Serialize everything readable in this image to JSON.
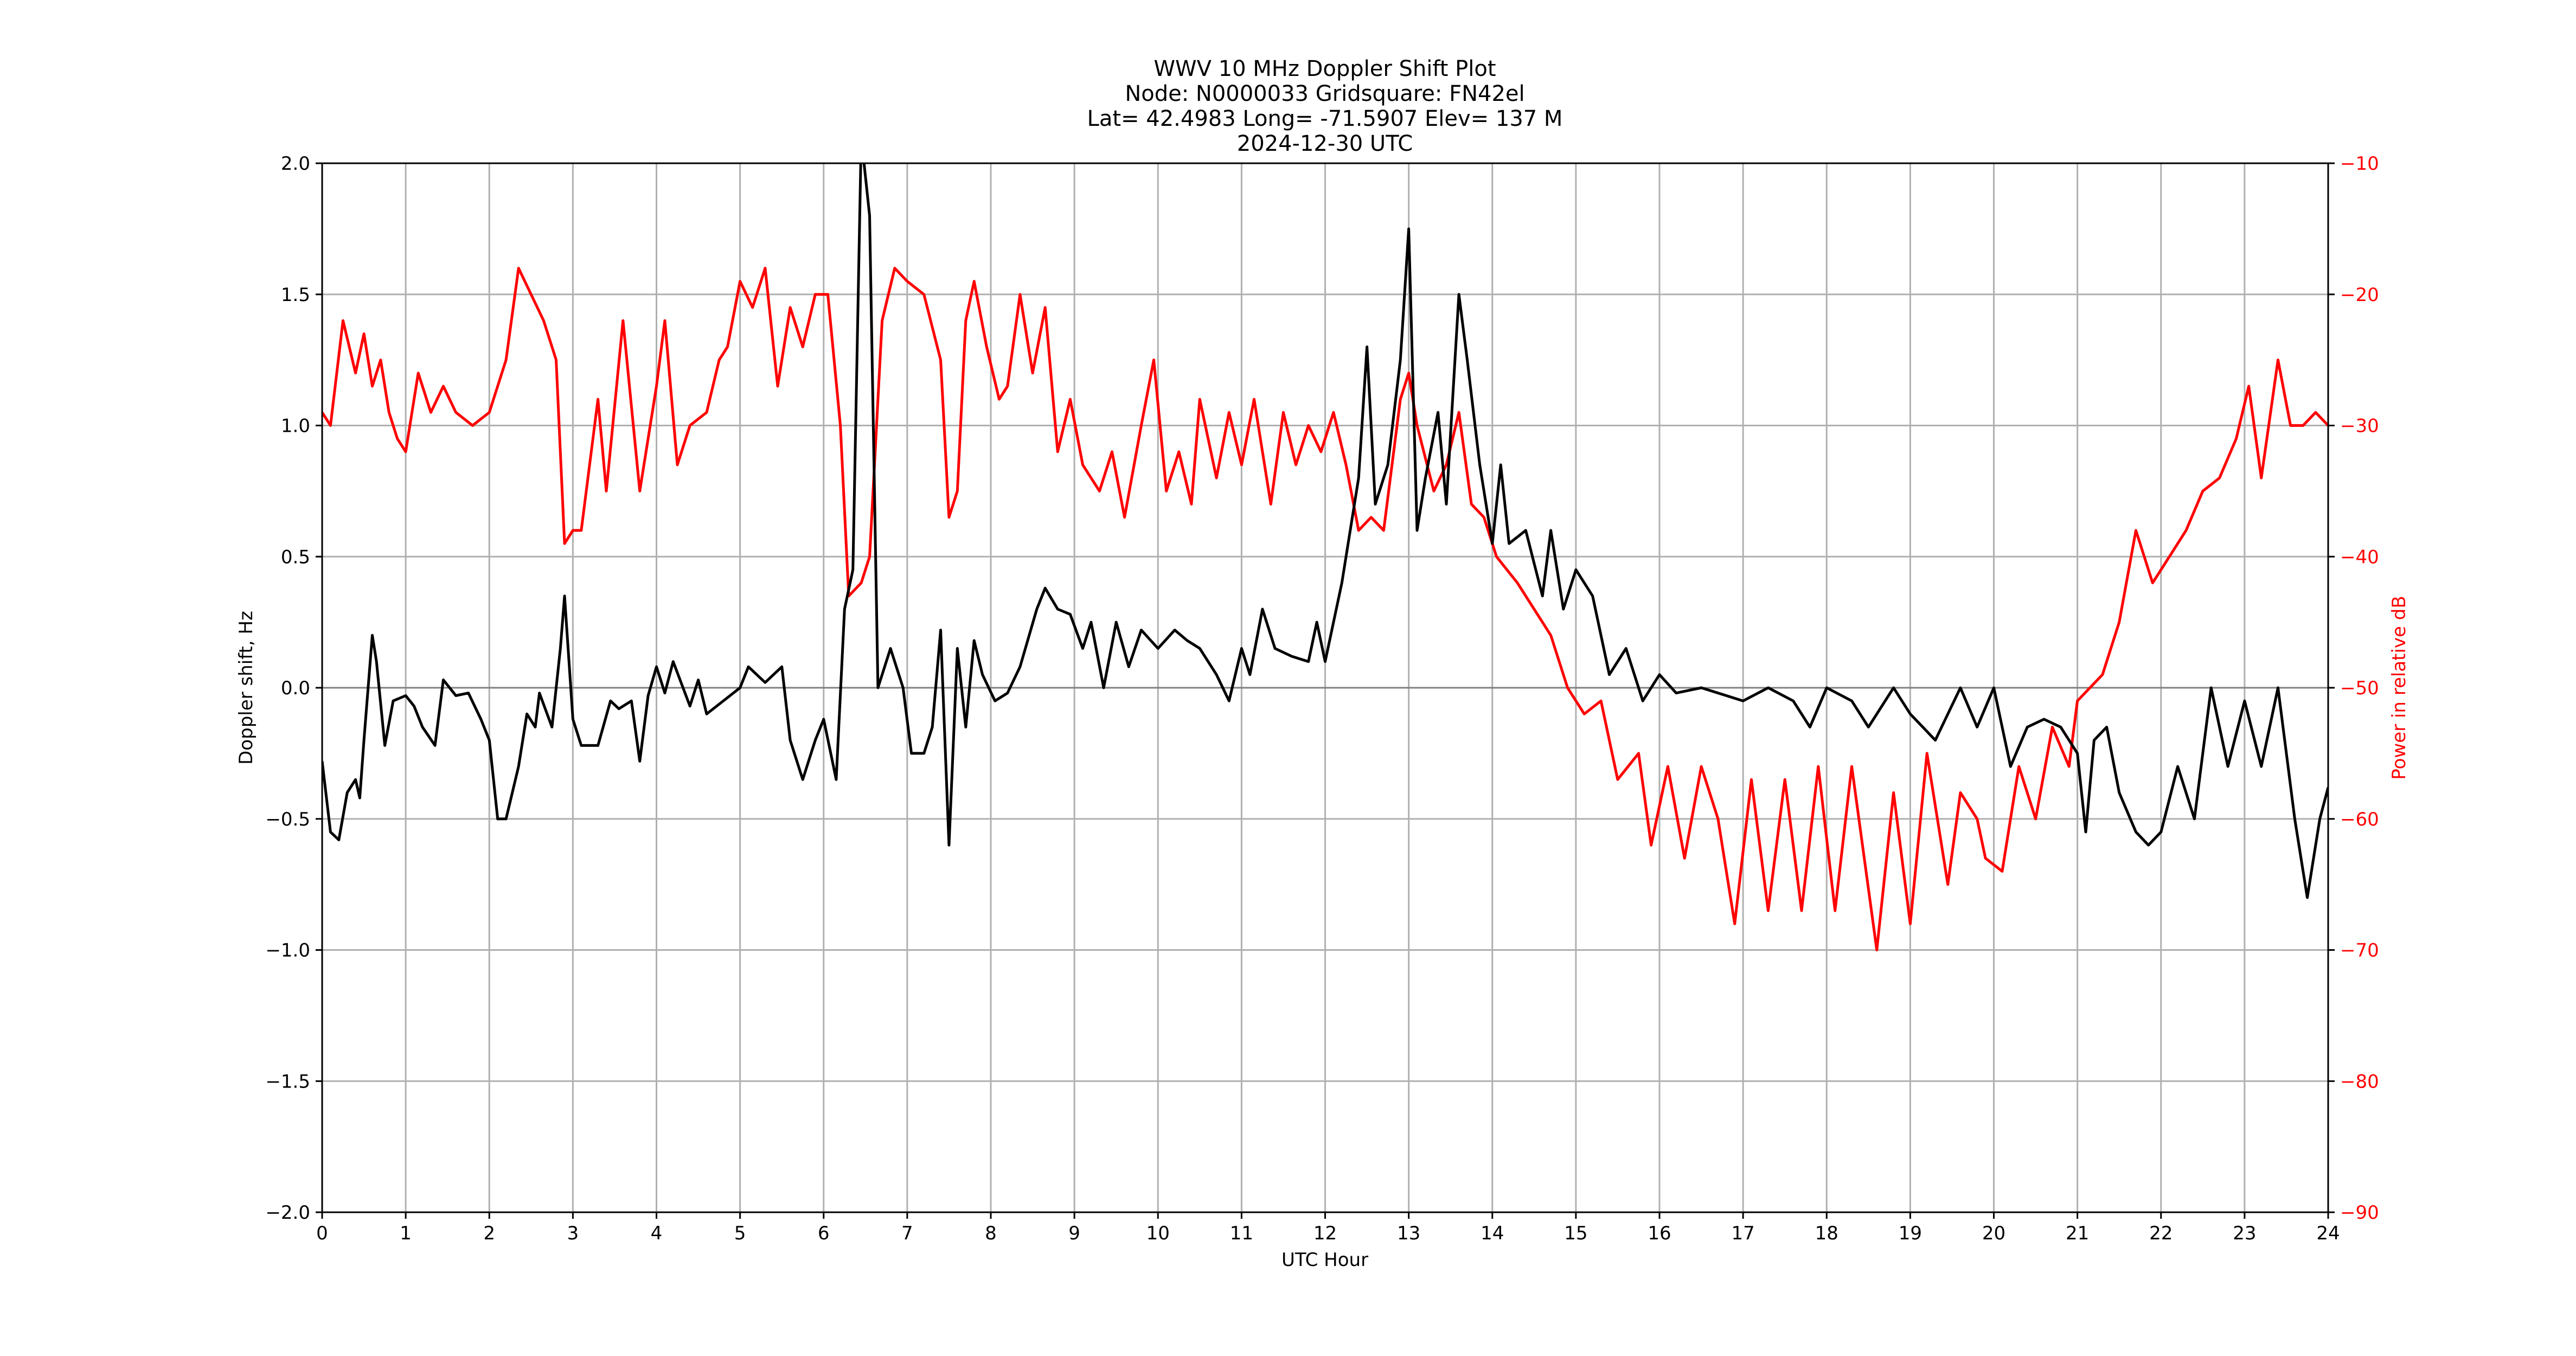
{
  "title": {
    "line1": "WWV 10 MHz Doppler Shift Plot",
    "line2": "Node:  N0000033     Gridsquare:  FN42el",
    "line3": "Lat= 42.4983    Long= -71.5907    Elev= 137 M",
    "line4": "2024-12-30  UTC"
  },
  "colors": {
    "doppler": "#000000",
    "power": "#ff0000",
    "grid": "#b0b0b0",
    "zero_line": "#808080"
  },
  "chart_data": {
    "type": "line",
    "title": "WWV 10 MHz Doppler Shift Plot",
    "subtitle": [
      "Node:  N0000033     Gridsquare:  FN42el",
      "Lat= 42.4983    Long= -71.5907    Elev= 137 M",
      "2024-12-30  UTC"
    ],
    "xlabel": "UTC Hour",
    "ylabel": "Doppler shift, Hz",
    "y2label": "Power in relative dB",
    "xlim": [
      0,
      24
    ],
    "ylim": [
      -2.0,
      2.0
    ],
    "y2lim": [
      -90,
      -10
    ],
    "grid": true,
    "x_ticks": [
      "0",
      "1",
      "2",
      "3",
      "4",
      "5",
      "6",
      "7",
      "8",
      "9",
      "10",
      "11",
      "12",
      "13",
      "14",
      "15",
      "16",
      "17",
      "18",
      "19",
      "20",
      "21",
      "22",
      "23",
      "24"
    ],
    "y_ticks": [
      "2.0",
      "1.5",
      "1.0",
      "0.5",
      "0.0",
      "−0.5",
      "−1.0",
      "−1.5",
      "−2.0"
    ],
    "y2_ticks": [
      "−10",
      "−20",
      "−30",
      "−40",
      "−50",
      "−60",
      "−70",
      "−80",
      "−90"
    ],
    "series": [
      {
        "name": "Doppler shift, Hz",
        "axis": "left",
        "color": "#000000",
        "x": [
          0,
          0.1,
          0.2,
          0.3,
          0.4,
          0.45,
          0.5,
          0.6,
          0.65,
          0.75,
          0.85,
          1.0,
          1.1,
          1.2,
          1.35,
          1.45,
          1.6,
          1.75,
          1.9,
          2.0,
          2.1,
          2.2,
          2.35,
          2.45,
          2.55,
          2.6,
          2.75,
          2.85,
          2.9,
          3.0,
          3.1,
          3.3,
          3.45,
          3.55,
          3.7,
          3.8,
          3.9,
          4.0,
          4.1,
          4.2,
          4.4,
          4.5,
          4.6,
          4.8,
          5.0,
          5.1,
          5.3,
          5.5,
          5.6,
          5.75,
          5.9,
          6.0,
          6.15,
          6.25,
          6.35,
          6.45,
          6.55,
          6.65,
          6.8,
          6.95,
          7.05,
          7.2,
          7.3,
          7.4,
          7.5,
          7.6,
          7.7,
          7.8,
          7.9,
          8.05,
          8.2,
          8.35,
          8.55,
          8.65,
          8.8,
          8.95,
          9.1,
          9.2,
          9.35,
          9.5,
          9.65,
          9.8,
          10.0,
          10.2,
          10.35,
          10.5,
          10.7,
          10.85,
          11.0,
          11.1,
          11.25,
          11.4,
          11.6,
          11.8,
          11.9,
          12.0,
          12.2,
          12.4,
          12.5,
          12.6,
          12.75,
          12.9,
          13.0,
          13.1,
          13.2,
          13.35,
          13.45,
          13.6,
          13.7,
          13.85,
          14.0,
          14.1,
          14.2,
          14.4,
          14.6,
          14.7,
          14.85,
          15.0,
          15.2,
          15.4,
          15.6,
          15.8,
          16.0,
          16.2,
          16.5,
          17.0,
          17.3,
          17.6,
          17.8,
          18.0,
          18.3,
          18.5,
          18.8,
          19.0,
          19.3,
          19.6,
          19.8,
          20.0,
          20.2,
          20.4,
          20.6,
          20.8,
          21.0,
          21.1,
          21.2,
          21.35,
          21.5,
          21.7,
          21.85,
          22.0,
          22.2,
          22.4,
          22.6,
          22.8,
          23.0,
          23.2,
          23.4,
          23.6,
          23.75,
          23.9,
          24.0
        ],
        "values": [
          -0.28,
          -0.55,
          -0.58,
          -0.4,
          -0.35,
          -0.42,
          -0.2,
          0.2,
          0.1,
          -0.22,
          -0.05,
          -0.03,
          -0.07,
          -0.15,
          -0.22,
          0.03,
          -0.03,
          -0.02,
          -0.12,
          -0.2,
          -0.5,
          -0.5,
          -0.3,
          -0.1,
          -0.15,
          -0.02,
          -0.15,
          0.15,
          0.35,
          -0.12,
          -0.22,
          -0.22,
          -0.05,
          -0.08,
          -0.05,
          -0.28,
          -0.03,
          0.08,
          -0.02,
          0.1,
          -0.07,
          0.03,
          -0.1,
          -0.05,
          0.0,
          0.08,
          0.02,
          0.08,
          -0.2,
          -0.35,
          -0.2,
          -0.12,
          -0.35,
          0.3,
          0.45,
          2.1,
          1.8,
          0.0,
          0.15,
          0.0,
          -0.25,
          -0.25,
          -0.15,
          0.22,
          -0.6,
          0.15,
          -0.15,
          0.18,
          0.05,
          -0.05,
          -0.02,
          0.08,
          0.3,
          0.38,
          0.3,
          0.28,
          0.15,
          0.25,
          0.0,
          0.25,
          0.08,
          0.22,
          0.15,
          0.22,
          0.18,
          0.15,
          0.05,
          -0.05,
          0.15,
          0.05,
          0.3,
          0.15,
          0.12,
          0.1,
          0.25,
          0.1,
          0.4,
          0.8,
          1.3,
          0.7,
          0.85,
          1.25,
          1.75,
          0.6,
          0.8,
          1.05,
          0.7,
          1.5,
          1.25,
          0.85,
          0.55,
          0.85,
          0.55,
          0.6,
          0.35,
          0.6,
          0.3,
          0.45,
          0.35,
          0.05,
          0.15,
          -0.05,
          0.05,
          -0.02,
          0.0,
          -0.05,
          0.0,
          -0.05,
          -0.15,
          0.0,
          -0.05,
          -0.15,
          0.0,
          -0.1,
          -0.2,
          0.0,
          -0.15,
          0.0,
          -0.3,
          -0.15,
          -0.12,
          -0.15,
          -0.25,
          -0.55,
          -0.2,
          -0.15,
          -0.4,
          -0.55,
          -0.6,
          -0.55,
          -0.3,
          -0.5,
          0.0,
          -0.3,
          -0.05,
          -0.3,
          0.0,
          -0.5,
          -0.8,
          -0.5,
          -0.38
        ]
      },
      {
        "name": "Power in relative dB",
        "axis": "right",
        "color": "#ff0000",
        "x": [
          0,
          0.1,
          0.25,
          0.4,
          0.5,
          0.6,
          0.7,
          0.8,
          0.9,
          1.0,
          1.15,
          1.3,
          1.45,
          1.6,
          1.8,
          2.0,
          2.2,
          2.35,
          2.5,
          2.65,
          2.8,
          2.9,
          3.0,
          3.1,
          3.3,
          3.4,
          3.6,
          3.8,
          4.0,
          4.1,
          4.25,
          4.4,
          4.6,
          4.75,
          4.85,
          5.0,
          5.15,
          5.3,
          5.45,
          5.6,
          5.75,
          5.9,
          6.05,
          6.2,
          6.3,
          6.45,
          6.55,
          6.7,
          6.85,
          7.0,
          7.2,
          7.4,
          7.5,
          7.6,
          7.7,
          7.8,
          7.95,
          8.1,
          8.2,
          8.35,
          8.5,
          8.65,
          8.8,
          8.95,
          9.1,
          9.3,
          9.45,
          9.6,
          9.8,
          9.95,
          10.1,
          10.25,
          10.4,
          10.5,
          10.7,
          10.85,
          11.0,
          11.15,
          11.35,
          11.5,
          11.65,
          11.8,
          11.95,
          12.1,
          12.25,
          12.4,
          12.55,
          12.7,
          12.9,
          13.0,
          13.1,
          13.3,
          13.45,
          13.6,
          13.75,
          13.9,
          14.05,
          14.3,
          14.5,
          14.7,
          14.9,
          15.1,
          15.3,
          15.5,
          15.75,
          15.9,
          16.1,
          16.3,
          16.5,
          16.7,
          16.9,
          17.1,
          17.3,
          17.5,
          17.7,
          17.9,
          18.1,
          18.3,
          18.6,
          18.8,
          19.0,
          19.2,
          19.45,
          19.6,
          19.8,
          19.9,
          20.1,
          20.3,
          20.5,
          20.7,
          20.9,
          21.0,
          21.3,
          21.5,
          21.7,
          21.9,
          22.1,
          22.3,
          22.5,
          22.7,
          22.9,
          23.05,
          23.2,
          23.4,
          23.55,
          23.7,
          23.85,
          24.0
        ],
        "values": [
          -29,
          -30,
          -22,
          -26,
          -23,
          -27,
          -25,
          -29,
          -31,
          -32,
          -26,
          -29,
          -27,
          -29,
          -30,
          -29,
          -25,
          -18,
          -20,
          -22,
          -25,
          -39,
          -38,
          -38,
          -28,
          -35,
          -22,
          -35,
          -27,
          -22,
          -33,
          -30,
          -29,
          -25,
          -24,
          -19,
          -21,
          -18,
          -27,
          -21,
          -24,
          -20,
          -20,
          -30,
          -43,
          -42,
          -40,
          -22,
          -18,
          -19,
          -20,
          -25,
          -37,
          -35,
          -22,
          -19,
          -24,
          -28,
          -27,
          -20,
          -26,
          -21,
          -32,
          -28,
          -33,
          -35,
          -32,
          -37,
          -30,
          -25,
          -35,
          -32,
          -36,
          -28,
          -34,
          -29,
          -33,
          -28,
          -36,
          -29,
          -33,
          -30,
          -32,
          -29,
          -33,
          -38,
          -37,
          -38,
          -28,
          -26,
          -30,
          -35,
          -33,
          -29,
          -36,
          -37,
          -40,
          -42,
          -44,
          -46,
          -50,
          -52,
          -51,
          -57,
          -55,
          -62,
          -56,
          -63,
          -56,
          -60,
          -68,
          -57,
          -67,
          -57,
          -67,
          -56,
          -67,
          -56,
          -70,
          -58,
          -68,
          -55,
          -65,
          -58,
          -60,
          -63,
          -64,
          -56,
          -60,
          -53,
          -56,
          -51,
          -49,
          -45,
          -38,
          -42,
          -40,
          -38,
          -35,
          -34,
          -31,
          -27,
          -34,
          -25,
          -30,
          -30,
          -29,
          -30
        ]
      }
    ]
  }
}
